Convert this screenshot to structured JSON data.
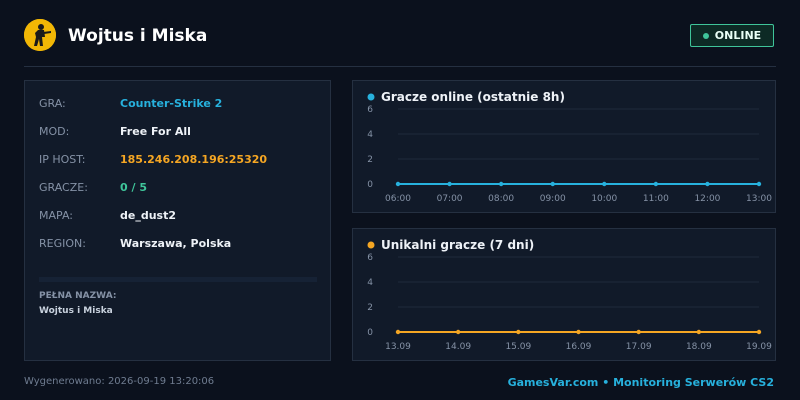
{
  "header": {
    "title": "Wojtus i Miska",
    "status": "ONLINE",
    "logo_icon": "counter-strike-soldier-icon"
  },
  "info": {
    "rows": [
      {
        "label": "GRA:",
        "value": "Counter-Strike 2",
        "color": "#27b1dd"
      },
      {
        "label": "MOD:",
        "value": "Free For All",
        "color": "#eef2f7"
      },
      {
        "label": "IP HOST:",
        "value": "185.246.208.196:25320",
        "color": "#f5a623"
      },
      {
        "label": "GRACZE:",
        "value": "0 / 5",
        "color": "#3fc59a"
      },
      {
        "label": "MAPA:",
        "value": "de_dust2",
        "color": "#eef2f7"
      },
      {
        "label": "REGION:",
        "value": "Warszawa, Polska",
        "color": "#eef2f7"
      }
    ],
    "full_name_label": "PEŁNA NAZWA:",
    "full_name": "Wojtus i Miska"
  },
  "chart_data": [
    {
      "type": "line",
      "title": "Gracze online (ostatnie 8h)",
      "color": "#27b1dd",
      "categories": [
        "06:00",
        "07:00",
        "08:00",
        "09:00",
        "10:00",
        "11:00",
        "12:00",
        "13:00"
      ],
      "values": [
        0,
        0,
        0,
        0,
        0,
        0,
        0,
        0
      ],
      "yticks": [
        "0",
        "2",
        "4",
        "6"
      ],
      "ylim": [
        0,
        6
      ],
      "grid": true
    },
    {
      "type": "line",
      "title": "Unikalni gracze (7 dni)",
      "color": "#f5a623",
      "categories": [
        "13.09",
        "14.09",
        "15.09",
        "16.09",
        "17.09",
        "18.09",
        "19.09"
      ],
      "values": [
        0,
        0,
        0,
        0,
        0,
        0,
        0
      ],
      "yticks": [
        "0",
        "2",
        "4",
        "6"
      ],
      "ylim": [
        0,
        6
      ],
      "grid": true
    }
  ],
  "footer": {
    "generated": "Wygenerowano: 2026-09-19 13:20:06",
    "brand": "GamesVar.com • Monitoring Serwerów CS2"
  }
}
